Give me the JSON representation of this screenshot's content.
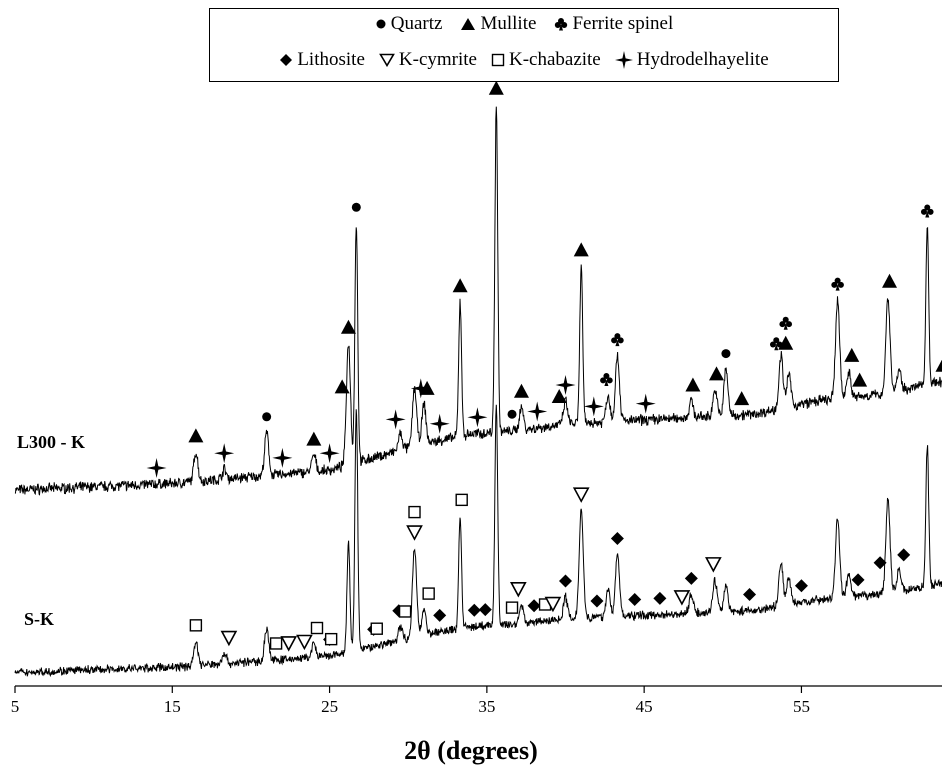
{
  "chart_data": {
    "type": "line",
    "title": "",
    "xlabel": "2θ (degrees)",
    "ylabel": "",
    "xlim": [
      5,
      64
    ],
    "ylim": [
      0,
      100
    ],
    "x_ticks": [
      5,
      15,
      25,
      35,
      45,
      55
    ],
    "legend": {
      "placement": "top-center",
      "entries": [
        {
          "name": "Quartz",
          "marker": "circle"
        },
        {
          "name": "Mullite",
          "marker": "triangle"
        },
        {
          "name": "Ferrite spinel",
          "marker": "club"
        },
        {
          "name": "Lithosite",
          "marker": "diamond"
        },
        {
          "name": "K-cymrite",
          "marker": "triangle-down-open"
        },
        {
          "name": "K-chabazite",
          "marker": "square-open"
        },
        {
          "name": "Hydrodelhayelite",
          "marker": "cross-star"
        }
      ]
    },
    "series": [
      {
        "name": "L300 - K",
        "baseline": [
          [
            5,
            3
          ],
          [
            10,
            4
          ],
          [
            15,
            5
          ],
          [
            20,
            7
          ],
          [
            25,
            9
          ],
          [
            28,
            13
          ],
          [
            31,
            17
          ],
          [
            34,
            20
          ],
          [
            37,
            21
          ],
          [
            40,
            23
          ],
          [
            44,
            24
          ],
          [
            48,
            25
          ],
          [
            52,
            26
          ],
          [
            56,
            30
          ],
          [
            60,
            32
          ],
          [
            64,
            36
          ]
        ],
        "peaks": [
          [
            16.5,
            9
          ],
          [
            18.3,
            3
          ],
          [
            21.0,
            13
          ],
          [
            24.0,
            5
          ],
          [
            26.2,
            37
          ],
          [
            26.7,
            73
          ],
          [
            29.5,
            5
          ],
          [
            30.4,
            18
          ],
          [
            31.0,
            12
          ],
          [
            33.3,
            41
          ],
          [
            35.6,
            100
          ],
          [
            37.2,
            7
          ],
          [
            40.0,
            7
          ],
          [
            41.0,
            48
          ],
          [
            42.7,
            8
          ],
          [
            43.3,
            20
          ],
          [
            48.0,
            5
          ],
          [
            49.5,
            8
          ],
          [
            50.2,
            14
          ],
          [
            53.7,
            16
          ],
          [
            54.2,
            10
          ],
          [
            57.3,
            30
          ],
          [
            58.0,
            8
          ],
          [
            60.5,
            29
          ],
          [
            61.2,
            6
          ],
          [
            63.0,
            48
          ]
        ]
      },
      {
        "name": "S-K",
        "baseline": [
          [
            5,
            2
          ],
          [
            10,
            3
          ],
          [
            15,
            4
          ],
          [
            20,
            6
          ],
          [
            25,
            8
          ],
          [
            28,
            12
          ],
          [
            31,
            16
          ],
          [
            34,
            19
          ],
          [
            37,
            20
          ],
          [
            40,
            22
          ],
          [
            44,
            23
          ],
          [
            48,
            24
          ],
          [
            52,
            25
          ],
          [
            56,
            29
          ],
          [
            60,
            31
          ],
          [
            64,
            35
          ]
        ],
        "peaks": [
          [
            16.5,
            9
          ],
          [
            18.3,
            4
          ],
          [
            21.0,
            12
          ],
          [
            24.0,
            5
          ],
          [
            26.2,
            41
          ],
          [
            26.7,
            90
          ],
          [
            29.5,
            5
          ],
          [
            30.4,
            33
          ],
          [
            31.0,
            10
          ],
          [
            33.3,
            42
          ],
          [
            35.6,
            82
          ],
          [
            37.2,
            7
          ],
          [
            40.0,
            8
          ],
          [
            41.0,
            40
          ],
          [
            42.7,
            10
          ],
          [
            43.3,
            23
          ],
          [
            48.0,
            7
          ],
          [
            49.5,
            12
          ],
          [
            50.2,
            10
          ],
          [
            53.7,
            16
          ],
          [
            54.2,
            10
          ],
          [
            57.3,
            30
          ],
          [
            58.0,
            8
          ],
          [
            60.5,
            35
          ],
          [
            61.2,
            8
          ],
          [
            63.0,
            52
          ]
        ]
      }
    ],
    "annotations": [
      {
        "series": "L300 - K",
        "x": 14.0,
        "symbols": [
          "cross-star"
        ]
      },
      {
        "series": "L300 - K",
        "x": 16.5,
        "symbols": [
          "triangle"
        ]
      },
      {
        "series": "L300 - K",
        "x": 18.3,
        "symbols": [
          "cross-star"
        ]
      },
      {
        "series": "L300 - K",
        "x": 21.0,
        "symbols": [
          "circle"
        ]
      },
      {
        "series": "L300 - K",
        "x": 22.0,
        "symbols": [
          "cross-star"
        ]
      },
      {
        "series": "L300 - K",
        "x": 24.0,
        "symbols": [
          "triangle"
        ]
      },
      {
        "series": "L300 - K",
        "x": 25.0,
        "symbols": [
          "cross-star"
        ]
      },
      {
        "series": "L300 - K",
        "x": 25.8,
        "symbols": [
          "triangle"
        ]
      },
      {
        "series": "L300 - K",
        "x": 26.2,
        "symbols": [
          "triangle"
        ]
      },
      {
        "series": "L300 - K",
        "x": 26.7,
        "symbols": [
          "circle"
        ]
      },
      {
        "series": "L300 - K",
        "x": 29.2,
        "symbols": [
          "cross-star"
        ]
      },
      {
        "series": "L300 - K",
        "x": 30.8,
        "symbols": [
          "cross-star"
        ]
      },
      {
        "series": "L300 - K",
        "x": 31.2,
        "symbols": [
          "triangle"
        ]
      },
      {
        "series": "L300 - K",
        "x": 32.0,
        "symbols": [
          "cross-star"
        ]
      },
      {
        "series": "L300 - K",
        "x": 33.3,
        "symbols": [
          "triangle"
        ]
      },
      {
        "series": "L300 - K",
        "x": 34.4,
        "symbols": [
          "cross-star"
        ]
      },
      {
        "series": "L300 - K",
        "x": 35.6,
        "symbols": [
          "triangle",
          "cross-star",
          "diamond"
        ]
      },
      {
        "series": "L300 - K",
        "x": 36.6,
        "symbols": [
          "circle"
        ]
      },
      {
        "series": "L300 - K",
        "x": 37.2,
        "symbols": [
          "triangle"
        ]
      },
      {
        "series": "L300 - K",
        "x": 38.2,
        "symbols": [
          "cross-star"
        ]
      },
      {
        "series": "L300 - K",
        "x": 39.6,
        "symbols": [
          "triangle"
        ]
      },
      {
        "series": "L300 - K",
        "x": 40.0,
        "symbols": [
          "cross-star"
        ]
      },
      {
        "series": "L300 - K",
        "x": 41.0,
        "symbols": [
          "triangle"
        ]
      },
      {
        "series": "L300 - K",
        "x": 41.8,
        "symbols": [
          "cross-star"
        ]
      },
      {
        "series": "L300 - K",
        "x": 42.6,
        "symbols": [
          "club"
        ]
      },
      {
        "series": "L300 - K",
        "x": 43.3,
        "symbols": [
          "club"
        ]
      },
      {
        "series": "L300 - K",
        "x": 45.1,
        "symbols": [
          "cross-star"
        ]
      },
      {
        "series": "L300 - K",
        "x": 48.1,
        "symbols": [
          "triangle"
        ]
      },
      {
        "series": "L300 - K",
        "x": 49.6,
        "symbols": [
          "triangle"
        ]
      },
      {
        "series": "L300 - K",
        "x": 50.2,
        "symbols": [
          "circle"
        ]
      },
      {
        "series": "L300 - K",
        "x": 51.2,
        "symbols": [
          "triangle"
        ]
      },
      {
        "series": "L300 - K",
        "x": 53.4,
        "symbols": [
          "club"
        ]
      },
      {
        "series": "L300 - K",
        "x": 54.0,
        "symbols": [
          "triangle",
          "club"
        ]
      },
      {
        "series": "L300 - K",
        "x": 57.3,
        "symbols": [
          "club"
        ]
      },
      {
        "series": "L300 - K",
        "x": 58.2,
        "symbols": [
          "triangle"
        ]
      },
      {
        "series": "L300 - K",
        "x": 58.7,
        "symbols": [
          "triangle"
        ]
      },
      {
        "series": "L300 - K",
        "x": 60.6,
        "symbols": [
          "triangle"
        ]
      },
      {
        "series": "L300 - K",
        "x": 63.0,
        "symbols": [
          "club"
        ]
      },
      {
        "series": "L300 - K",
        "x": 64.0,
        "symbols": [
          "triangle"
        ]
      },
      {
        "series": "S-K",
        "x": 16.5,
        "symbols": [
          "square-open"
        ]
      },
      {
        "series": "S-K",
        "x": 18.6,
        "symbols": [
          "triangle-down-open"
        ]
      },
      {
        "series": "S-K",
        "x": 21.6,
        "symbols": [
          "square-open"
        ]
      },
      {
        "series": "S-K",
        "x": 22.4,
        "symbols": [
          "triangle-down-open"
        ]
      },
      {
        "series": "S-K",
        "x": 23.4,
        "symbols": [
          "triangle-down-open"
        ]
      },
      {
        "series": "S-K",
        "x": 24.2,
        "symbols": [
          "square-open"
        ]
      },
      {
        "series": "S-K",
        "x": 25.0,
        "symbols": [
          "diamond"
        ]
      },
      {
        "series": "S-K",
        "x": 25.1,
        "symbols": [
          "square-open"
        ]
      },
      {
        "series": "S-K",
        "x": 27.8,
        "symbols": [
          "diamond"
        ]
      },
      {
        "series": "S-K",
        "x": 28.0,
        "symbols": [
          "square-open"
        ]
      },
      {
        "series": "S-K",
        "x": 29.4,
        "symbols": [
          "diamond"
        ]
      },
      {
        "series": "S-K",
        "x": 29.8,
        "symbols": [
          "square-open"
        ]
      },
      {
        "series": "S-K",
        "x": 30.4,
        "symbols": [
          "triangle-down-open",
          "square-open"
        ]
      },
      {
        "series": "S-K",
        "x": 31.3,
        "symbols": [
          "square-open"
        ]
      },
      {
        "series": "S-K",
        "x": 32.0,
        "symbols": [
          "diamond"
        ]
      },
      {
        "series": "S-K",
        "x": 33.4,
        "symbols": [
          "square-open"
        ]
      },
      {
        "series": "S-K",
        "x": 34.2,
        "symbols": [
          "diamond"
        ]
      },
      {
        "series": "S-K",
        "x": 34.9,
        "symbols": [
          "diamond"
        ]
      },
      {
        "series": "S-K",
        "x": 36.6,
        "symbols": [
          "square-open"
        ]
      },
      {
        "series": "S-K",
        "x": 37.0,
        "symbols": [
          "triangle-down-open"
        ]
      },
      {
        "series": "S-K",
        "x": 38.0,
        "symbols": [
          "diamond"
        ]
      },
      {
        "series": "S-K",
        "x": 38.7,
        "symbols": [
          "square-open"
        ]
      },
      {
        "series": "S-K",
        "x": 39.2,
        "symbols": [
          "triangle-down-open"
        ]
      },
      {
        "series": "S-K",
        "x": 40.0,
        "symbols": [
          "diamond"
        ]
      },
      {
        "series": "S-K",
        "x": 41.0,
        "symbols": [
          "triangle-down-open"
        ]
      },
      {
        "series": "S-K",
        "x": 42.0,
        "symbols": [
          "diamond"
        ]
      },
      {
        "series": "S-K",
        "x": 43.3,
        "symbols": [
          "diamond"
        ]
      },
      {
        "series": "S-K",
        "x": 44.4,
        "symbols": [
          "diamond"
        ]
      },
      {
        "series": "S-K",
        "x": 46.0,
        "symbols": [
          "diamond"
        ]
      },
      {
        "series": "S-K",
        "x": 47.4,
        "symbols": [
          "triangle-down-open"
        ]
      },
      {
        "series": "S-K",
        "x": 48.0,
        "symbols": [
          "diamond"
        ]
      },
      {
        "series": "S-K",
        "x": 49.4,
        "symbols": [
          "triangle-down-open"
        ]
      },
      {
        "series": "S-K",
        "x": 51.7,
        "symbols": [
          "diamond"
        ]
      },
      {
        "series": "S-K",
        "x": 55.0,
        "symbols": [
          "diamond"
        ]
      },
      {
        "series": "S-K",
        "x": 58.6,
        "symbols": [
          "diamond"
        ]
      },
      {
        "series": "S-K",
        "x": 60.0,
        "symbols": [
          "diamond"
        ]
      },
      {
        "series": "S-K",
        "x": 61.5,
        "symbols": [
          "diamond"
        ]
      }
    ]
  }
}
